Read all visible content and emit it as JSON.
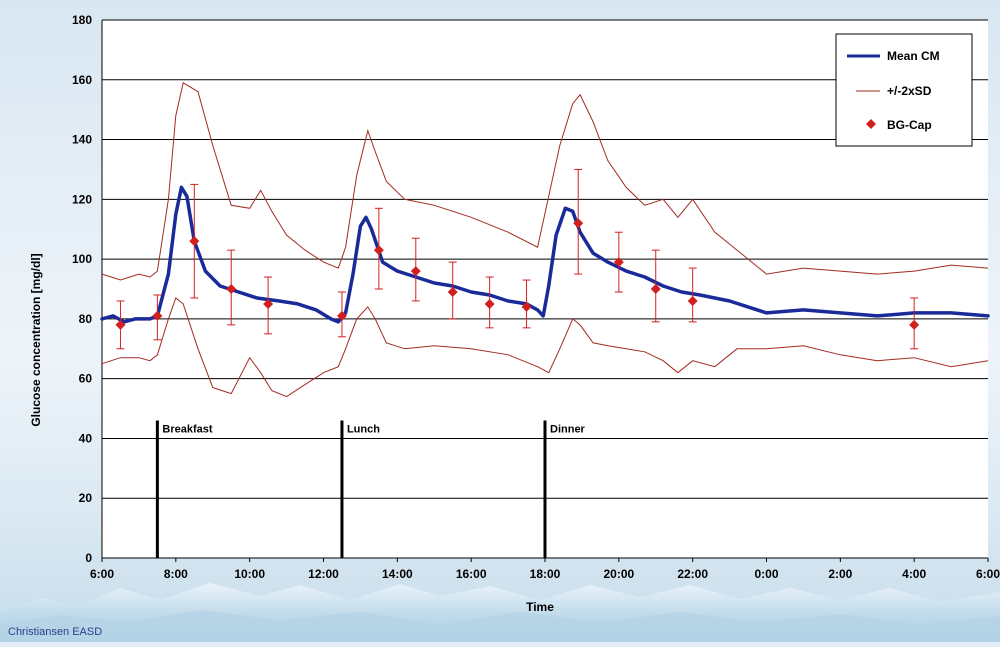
{
  "chart_data": {
    "type": "line",
    "xlabel": "Time",
    "ylabel": "Glucose concentration [mg/dl]",
    "ylim": [
      0,
      180
    ],
    "yticks": [
      0,
      20,
      40,
      60,
      80,
      100,
      120,
      140,
      160,
      180
    ],
    "xlim": [
      6,
      30
    ],
    "xticks": [
      {
        "v": 6,
        "label": "6:00"
      },
      {
        "v": 8,
        "label": "8:00"
      },
      {
        "v": 10,
        "label": "10:00"
      },
      {
        "v": 12,
        "label": "12:00"
      },
      {
        "v": 14,
        "label": "14:00"
      },
      {
        "v": 16,
        "label": "16:00"
      },
      {
        "v": 18,
        "label": "18:00"
      },
      {
        "v": 20,
        "label": "20:00"
      },
      {
        "v": 22,
        "label": "22:00"
      },
      {
        "v": 24,
        "label": "0:00"
      },
      {
        "v": 26,
        "label": "2:00"
      },
      {
        "v": 28,
        "label": "4:00"
      },
      {
        "v": 30,
        "label": "6:00"
      }
    ],
    "grid": "horizontal",
    "legend_position": "top-right",
    "colors": {
      "mean": "#1a2b99",
      "sd": "#a22a22",
      "point": "#d22020"
    },
    "series": [
      {
        "name": "Mean CM",
        "kind": "line",
        "x": [
          6.0,
          6.3,
          6.6,
          6.9,
          7.3,
          7.5,
          7.8,
          8.0,
          8.15,
          8.3,
          8.5,
          8.8,
          9.2,
          9.7,
          10.2,
          10.8,
          11.3,
          11.8,
          12.2,
          12.4,
          12.6,
          12.8,
          13.0,
          13.15,
          13.3,
          13.6,
          14.0,
          14.5,
          15.0,
          15.5,
          16.0,
          16.5,
          17.0,
          17.5,
          17.8,
          17.95,
          18.1,
          18.3,
          18.55,
          18.75,
          18.95,
          19.3,
          19.7,
          20.2,
          20.7,
          21.2,
          21.7,
          22.2,
          22.6,
          23.0,
          23.5,
          24.0,
          25.0,
          26.0,
          27.0,
          28.0,
          29.0,
          30.0
        ],
        "y": [
          80,
          81,
          79,
          80,
          80,
          81,
          95,
          115,
          124,
          121,
          106,
          96,
          91,
          89,
          87,
          86,
          85,
          83,
          80,
          79,
          82,
          95,
          111,
          114,
          110,
          99,
          96,
          94,
          92,
          91,
          89,
          88,
          86,
          85,
          83,
          81,
          91,
          108,
          117,
          116,
          109,
          102,
          99,
          96,
          94,
          91,
          89,
          88,
          87,
          86,
          84,
          82,
          83,
          82,
          81,
          82,
          82,
          81
        ]
      },
      {
        "name": "+/-2xSD",
        "kind": "band",
        "x": [
          6.0,
          6.5,
          7.0,
          7.3,
          7.5,
          7.8,
          8.0,
          8.2,
          8.6,
          9.0,
          9.5,
          10.0,
          10.3,
          10.6,
          11.0,
          11.5,
          12.0,
          12.4,
          12.6,
          12.9,
          13.2,
          13.4,
          13.7,
          14.2,
          15.0,
          16.0,
          17.0,
          17.8,
          18.1,
          18.4,
          18.75,
          18.95,
          19.3,
          19.7,
          20.2,
          20.7,
          21.2,
          21.6,
          22.0,
          22.6,
          23.2,
          24.0,
          25.0,
          26.0,
          27.0,
          28.0,
          29.0,
          30.0
        ],
        "upper": [
          95,
          93,
          95,
          94,
          96,
          120,
          148,
          159,
          156,
          138,
          118,
          117,
          123,
          116,
          108,
          103,
          99,
          97,
          104,
          128,
          143,
          136,
          126,
          120,
          118,
          114,
          109,
          104,
          121,
          138,
          152,
          155,
          146,
          133,
          124,
          118,
          120,
          114,
          120,
          109,
          103,
          95,
          97,
          96,
          95,
          96,
          98,
          97
        ],
        "lower": [
          65,
          67,
          67,
          66,
          68,
          80,
          87,
          85,
          70,
          57,
          55,
          67,
          62,
          56,
          54,
          58,
          62,
          64,
          70,
          80,
          84,
          80,
          72,
          70,
          71,
          70,
          68,
          64,
          62,
          70,
          80,
          78,
          72,
          71,
          70,
          69,
          66,
          62,
          66,
          64,
          70,
          70,
          71,
          68,
          66,
          67,
          64,
          66
        ]
      },
      {
        "name": "BG-Cap",
        "kind": "scatter",
        "x": [
          6.5,
          7.5,
          8.5,
          9.5,
          10.5,
          12.5,
          13.5,
          14.5,
          15.5,
          16.5,
          17.5,
          18.9,
          20.0,
          21.0,
          22.0,
          28.0
        ],
        "y": [
          78,
          81,
          106,
          90,
          85,
          81,
          103,
          96,
          89,
          85,
          84,
          112,
          99,
          90,
          86,
          78
        ],
        "err_low": [
          70,
          73,
          87,
          78,
          75,
          74,
          90,
          86,
          80,
          77,
          77,
          95,
          89,
          79,
          79,
          70
        ],
        "err_high": [
          86,
          88,
          125,
          103,
          94,
          89,
          117,
          107,
          99,
          94,
          93,
          130,
          109,
          103,
          97,
          87
        ]
      }
    ],
    "annotations": [
      {
        "x": 7.5,
        "text": "Breakfast"
      },
      {
        "x": 12.5,
        "text": "Lunch"
      },
      {
        "x": 18.0,
        "text": "Dinner"
      }
    ]
  },
  "legend": {
    "mean": "Mean CM",
    "sd": "+/-2xSD",
    "bg": "BG-Cap"
  },
  "credit": "Christiansen EASD"
}
